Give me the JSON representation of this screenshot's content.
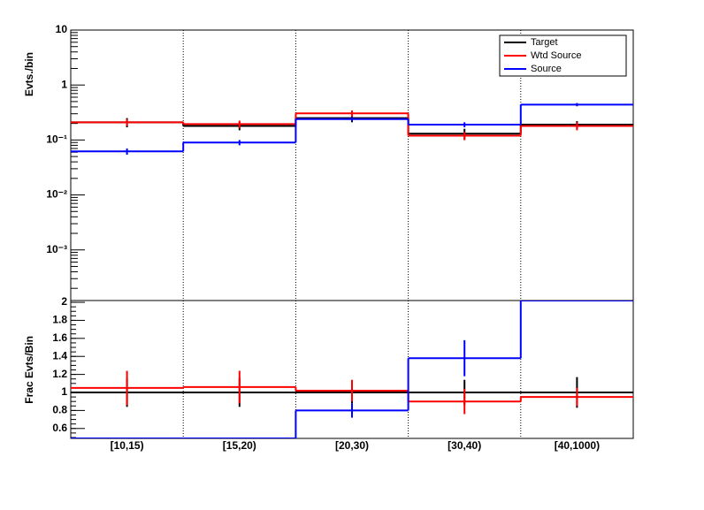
{
  "chart_data": [
    {
      "type": "step",
      "ylabel": "Evts./bin",
      "log_y": true,
      "legend": "top-right",
      "ylim": [
        0.00012,
        10
      ],
      "yticks": [
        10,
        1,
        {
          "value": 0.1,
          "label": "10⁻¹"
        },
        {
          "value": 0.01,
          "label": "10⁻²"
        },
        {
          "value": 0.001,
          "label": "10⁻³"
        }
      ],
      "series": [
        {
          "name": "Target",
          "color": "#000000",
          "values": [
            0.21,
            0.18,
            0.25,
            0.13,
            0.19
          ],
          "errors": [
            0.04,
            0.03,
            0.04,
            0.03,
            0.03
          ]
        },
        {
          "name": "Wtd Source",
          "color": "#ff0000",
          "values": [
            0.21,
            0.195,
            0.305,
            0.12,
            0.18
          ],
          "errors": [
            0.03,
            0.03,
            0.04,
            0.02,
            0.03
          ]
        },
        {
          "name": "Source",
          "color": "#0000ff",
          "values": [
            0.062,
            0.09,
            0.24,
            0.19,
            0.44
          ],
          "errors": [
            0.008,
            0.01,
            0.02,
            0.02,
            0.03
          ]
        }
      ]
    },
    {
      "type": "step",
      "ylabel": "Frac Evts/Bin",
      "log_y": false,
      "categories": [
        "[10,15)",
        "[15,20)",
        "[20,30)",
        "[30,40)",
        "[40,1000)"
      ],
      "ylim": [
        0.49,
        2.02
      ],
      "yticks": [
        0.6,
        0.8,
        1,
        1.2,
        1.4,
        1.6,
        1.8,
        2
      ],
      "series": [
        {
          "color": "#000000",
          "values": [
            1,
            1,
            1,
            1,
            1
          ],
          "errors": [
            0.16,
            0.16,
            0.12,
            0.14,
            0.17
          ]
        },
        {
          "color": "#ff0000",
          "values": [
            1.05,
            1.06,
            1.02,
            0.9,
            0.95
          ],
          "errors": [
            0.19,
            0.18,
            0.12,
            0.14,
            0.1
          ]
        },
        {
          "color": "#0000ff",
          "values": [
            0.49,
            0.49,
            0.8,
            1.38,
            2.02
          ],
          "errors": [
            null,
            null,
            0.08,
            0.2,
            null
          ]
        }
      ]
    }
  ]
}
